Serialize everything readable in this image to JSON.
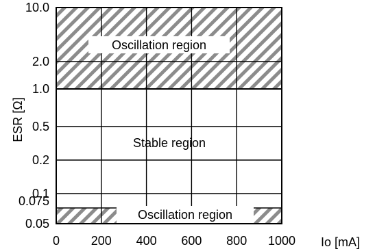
{
  "chart_data": {
    "type": "area",
    "xlabel": "Io [mA]",
    "ylabel": "ESR [Ω]",
    "xlim": [
      0,
      1000
    ],
    "x_ticks": [
      0,
      200,
      400,
      600,
      800,
      1000
    ],
    "x_tick_labels": [
      "0",
      "200",
      "400",
      "600",
      "800",
      "1000"
    ],
    "y_ticks": [
      0.05,
      0.075,
      0.1,
      0.2,
      0.5,
      1.0,
      2.0,
      10.0
    ],
    "y_tick_labels": [
      "0.05",
      "0.075",
      "0.1",
      "0.2",
      "0.5",
      "1.0",
      "2.0",
      "10.0"
    ],
    "ylim": [
      0.05,
      10.0
    ],
    "y_scale": "custom",
    "grid": true,
    "regions": [
      {
        "label": "Oscillation region",
        "y_from": 1.0,
        "y_to": 10.0,
        "hatched": true
      },
      {
        "label": "Stable region",
        "y_from": 0.075,
        "y_to": 1.0,
        "hatched": false
      },
      {
        "label": "Oscillation region",
        "y_from": 0.05,
        "y_to": 0.075,
        "hatched": true
      }
    ]
  }
}
